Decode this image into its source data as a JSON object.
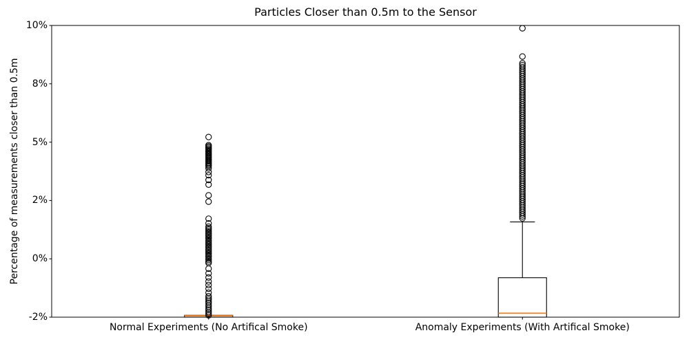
{
  "chart_data": {
    "type": "boxplot",
    "title": "Particles Closer than 0.5m to the Sensor",
    "ylabel": "Percentage of measurements closer than 0.5m",
    "xlabel": "",
    "ylim": [
      -2.5,
      10
    ],
    "grid": false,
    "frame": true,
    "legend": "none",
    "colors": {
      "box": "#000000",
      "whisker": "#000000",
      "median": "#ff7f0e",
      "flier_edge": "#000000",
      "background": "#ffffff"
    },
    "yticks": [
      {
        "value": 10,
        "label": "10%"
      },
      {
        "value": 7.5,
        "label": "8%"
      },
      {
        "value": 5,
        "label": "5%"
      },
      {
        "value": 2.5,
        "label": "2%"
      },
      {
        "value": 0,
        "label": "0%"
      },
      {
        "value": -2.5,
        "label": "-2%"
      }
    ],
    "boxes": [
      {
        "label": "Normal Experiments (No Artifical Smoke)",
        "position": 0.25,
        "q1": -2.5,
        "median": -2.44,
        "q3": -2.42,
        "whisker_low": -2.5,
        "whisker_high": -2.42,
        "outliers": [
          5.22,
          4.87,
          4.82,
          4.77,
          4.72,
          4.67,
          4.62,
          4.57,
          4.52,
          4.47,
          4.42,
          4.37,
          4.32,
          4.27,
          4.22,
          4.17,
          4.12,
          4.07,
          4.02,
          3.97,
          3.88,
          3.72,
          3.58,
          3.38,
          3.18,
          2.72,
          2.45,
          1.72,
          1.52,
          1.38,
          1.31,
          1.25,
          1.18,
          1.12,
          1.05,
          0.99,
          0.92,
          0.86,
          0.79,
          0.73,
          0.66,
          0.6,
          0.53,
          0.47,
          0.4,
          0.34,
          0.27,
          0.21,
          0.14,
          0.08,
          0.01,
          -0.05,
          -0.12,
          -0.18,
          -0.42,
          -0.62,
          -0.8,
          -0.97,
          -1.12,
          -1.28,
          -1.45,
          -1.6,
          -1.68,
          -1.75,
          -1.83,
          -1.9,
          -1.98,
          -2.05,
          -2.13,
          -2.2,
          -2.28,
          -2.35,
          -2.42
        ]
      },
      {
        "label": "Anomaly Experiments (With Artifical Smoke)",
        "position": 0.75,
        "q1": -2.5,
        "median": -2.33,
        "q3": -0.81,
        "whisker_low": -2.5,
        "whisker_high": 1.58,
        "outliers": [
          9.88,
          8.67,
          8.38,
          8.3,
          8.22,
          8.14,
          8.06,
          7.98,
          7.9,
          7.82,
          7.74,
          7.66,
          7.58,
          7.5,
          7.42,
          7.34,
          7.26,
          7.18,
          7.1,
          7.02,
          6.94,
          6.86,
          6.78,
          6.7,
          6.62,
          6.54,
          6.46,
          6.38,
          6.3,
          6.22,
          6.14,
          6.06,
          5.98,
          5.9,
          5.82,
          5.74,
          5.66,
          5.58,
          5.5,
          5.42,
          5.34,
          5.26,
          5.18,
          5.1,
          5.02,
          4.94,
          4.86,
          4.78,
          4.7,
          4.62,
          4.54,
          4.46,
          4.38,
          4.3,
          4.22,
          4.14,
          4.06,
          3.98,
          3.9,
          3.82,
          3.74,
          3.66,
          3.58,
          3.5,
          3.42,
          3.34,
          3.26,
          3.18,
          3.1,
          3.02,
          2.94,
          2.86,
          2.78,
          2.7,
          2.62,
          2.54,
          2.46,
          2.38,
          2.3,
          2.22,
          2.14,
          2.06,
          1.98,
          1.9,
          1.82,
          1.74
        ]
      }
    ]
  }
}
